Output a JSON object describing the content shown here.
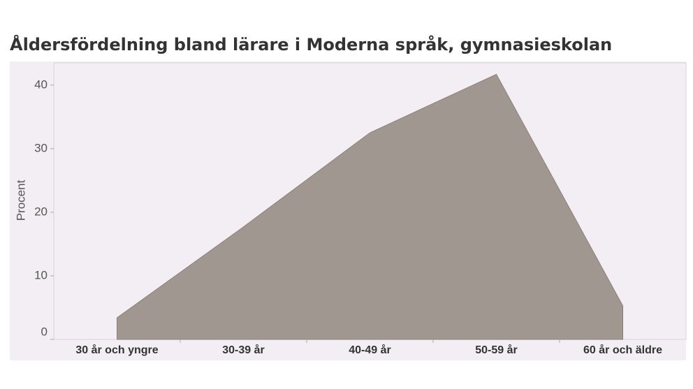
{
  "chart_data": {
    "type": "area",
    "title": "Åldersfördelning bland lärare i Moderna språk, gymnasieskolan",
    "y_label": "Procent",
    "categories": [
      "30 år och yngre",
      "30-39 år",
      "40-49 år",
      "50-59 år",
      "60 år och äldre"
    ],
    "values": [
      3.4,
      17.7,
      32.5,
      41.7,
      5.3
    ],
    "color": "#a09890",
    "ylim": [
      0,
      43.5
    ],
    "yticks": [
      0,
      10,
      20,
      30,
      40
    ]
  }
}
